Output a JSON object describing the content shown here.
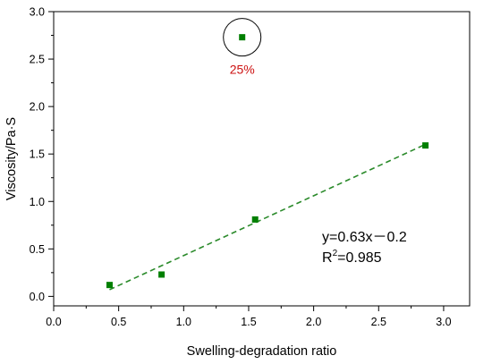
{
  "chart_data": {
    "type": "scatter",
    "xlabel": "Swelling-degradation ratio",
    "ylabel": "Viscosity/Pa·S",
    "xlim": [
      0.0,
      3.2
    ],
    "ylim": [
      -0.1,
      3.0
    ],
    "xticks": [
      0.0,
      0.5,
      1.0,
      1.5,
      2.0,
      2.5,
      3.0
    ],
    "xtick_labels": [
      "0.0",
      "0.5",
      "1.0",
      "1.5",
      "2.0",
      "2.5",
      "3.0"
    ],
    "yticks": [
      0.0,
      0.5,
      1.0,
      1.5,
      2.0,
      2.5,
      3.0
    ],
    "ytick_labels": [
      "0.0",
      "0.5",
      "1.0",
      "1.5",
      "2.0",
      "2.5",
      "3.0"
    ],
    "grid": false,
    "marker_color": "#007f00",
    "fit_line_color": "#2a8a2a",
    "annotation_color": "#cc1111",
    "points": [
      {
        "x": 0.43,
        "y": 0.12
      },
      {
        "x": 0.83,
        "y": 0.23
      },
      {
        "x": 1.55,
        "y": 0.81
      },
      {
        "x": 2.86,
        "y": 1.59
      },
      {
        "x": 1.45,
        "y": 2.73
      }
    ],
    "fit_line": {
      "x_start": 0.43,
      "x_end": 2.86,
      "slope": 0.63,
      "intercept": -0.2,
      "style": "dashed"
    },
    "outlier": {
      "x": 1.45,
      "y": 2.73,
      "circled": true,
      "label": "25%"
    },
    "equation": "y=0.63x－0.2",
    "r_squared_label": "R",
    "r_squared_exp": "2",
    "r_squared_value": "=0.985"
  }
}
